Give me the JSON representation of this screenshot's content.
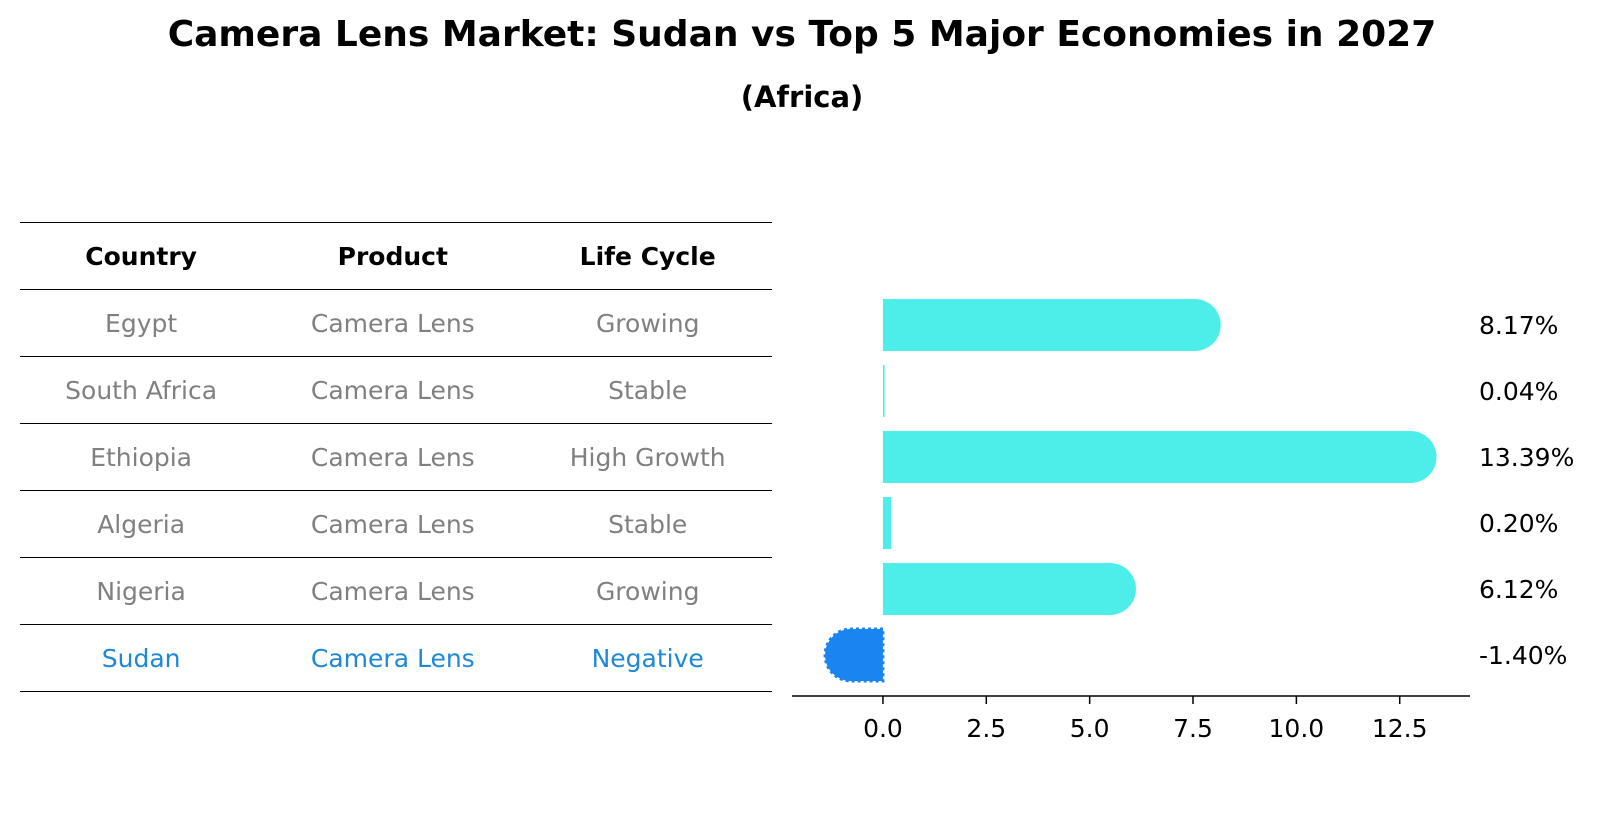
{
  "title": "Camera Lens Market: Sudan vs Top 5 Major Economies in 2027",
  "subtitle": "(Africa)",
  "table": {
    "headers": [
      "Country",
      "Product",
      "Life Cycle"
    ],
    "rows": [
      [
        "Egypt",
        "Camera Lens",
        "Growing"
      ],
      [
        "South Africa",
        "Camera Lens",
        "Stable"
      ],
      [
        "Ethiopia",
        "Camera Lens",
        "High Growth"
      ],
      [
        "Algeria",
        "Camera Lens",
        "Stable"
      ],
      [
        "Nigeria",
        "Camera Lens",
        "Growing"
      ],
      [
        "Sudan",
        "Camera Lens",
        "Negative"
      ]
    ],
    "highlight_row": 5
  },
  "chart_data": {
    "type": "bar",
    "orientation": "horizontal",
    "categories": [
      "Egypt",
      "South Africa",
      "Ethiopia",
      "Algeria",
      "Nigeria",
      "Sudan"
    ],
    "values": [
      8.17,
      0.04,
      13.39,
      0.2,
      6.12,
      -1.4
    ],
    "labels": [
      "8.17%",
      "0.04%",
      "13.39%",
      "0.20%",
      "6.12%",
      "-1.40%"
    ],
    "xlim": [
      -2.2,
      14.2
    ],
    "xticks": [
      0.0,
      2.5,
      5.0,
      7.5,
      10.0,
      12.5
    ],
    "xtick_labels": [
      "0.0",
      "2.5",
      "5.0",
      "7.5",
      "10.0",
      "12.5"
    ],
    "colors": {
      "positive": "#4deee9",
      "negative": "#1a85f0",
      "highlight_text": "#1e88d8",
      "muted_text": "#808080"
    },
    "grid": false
  }
}
